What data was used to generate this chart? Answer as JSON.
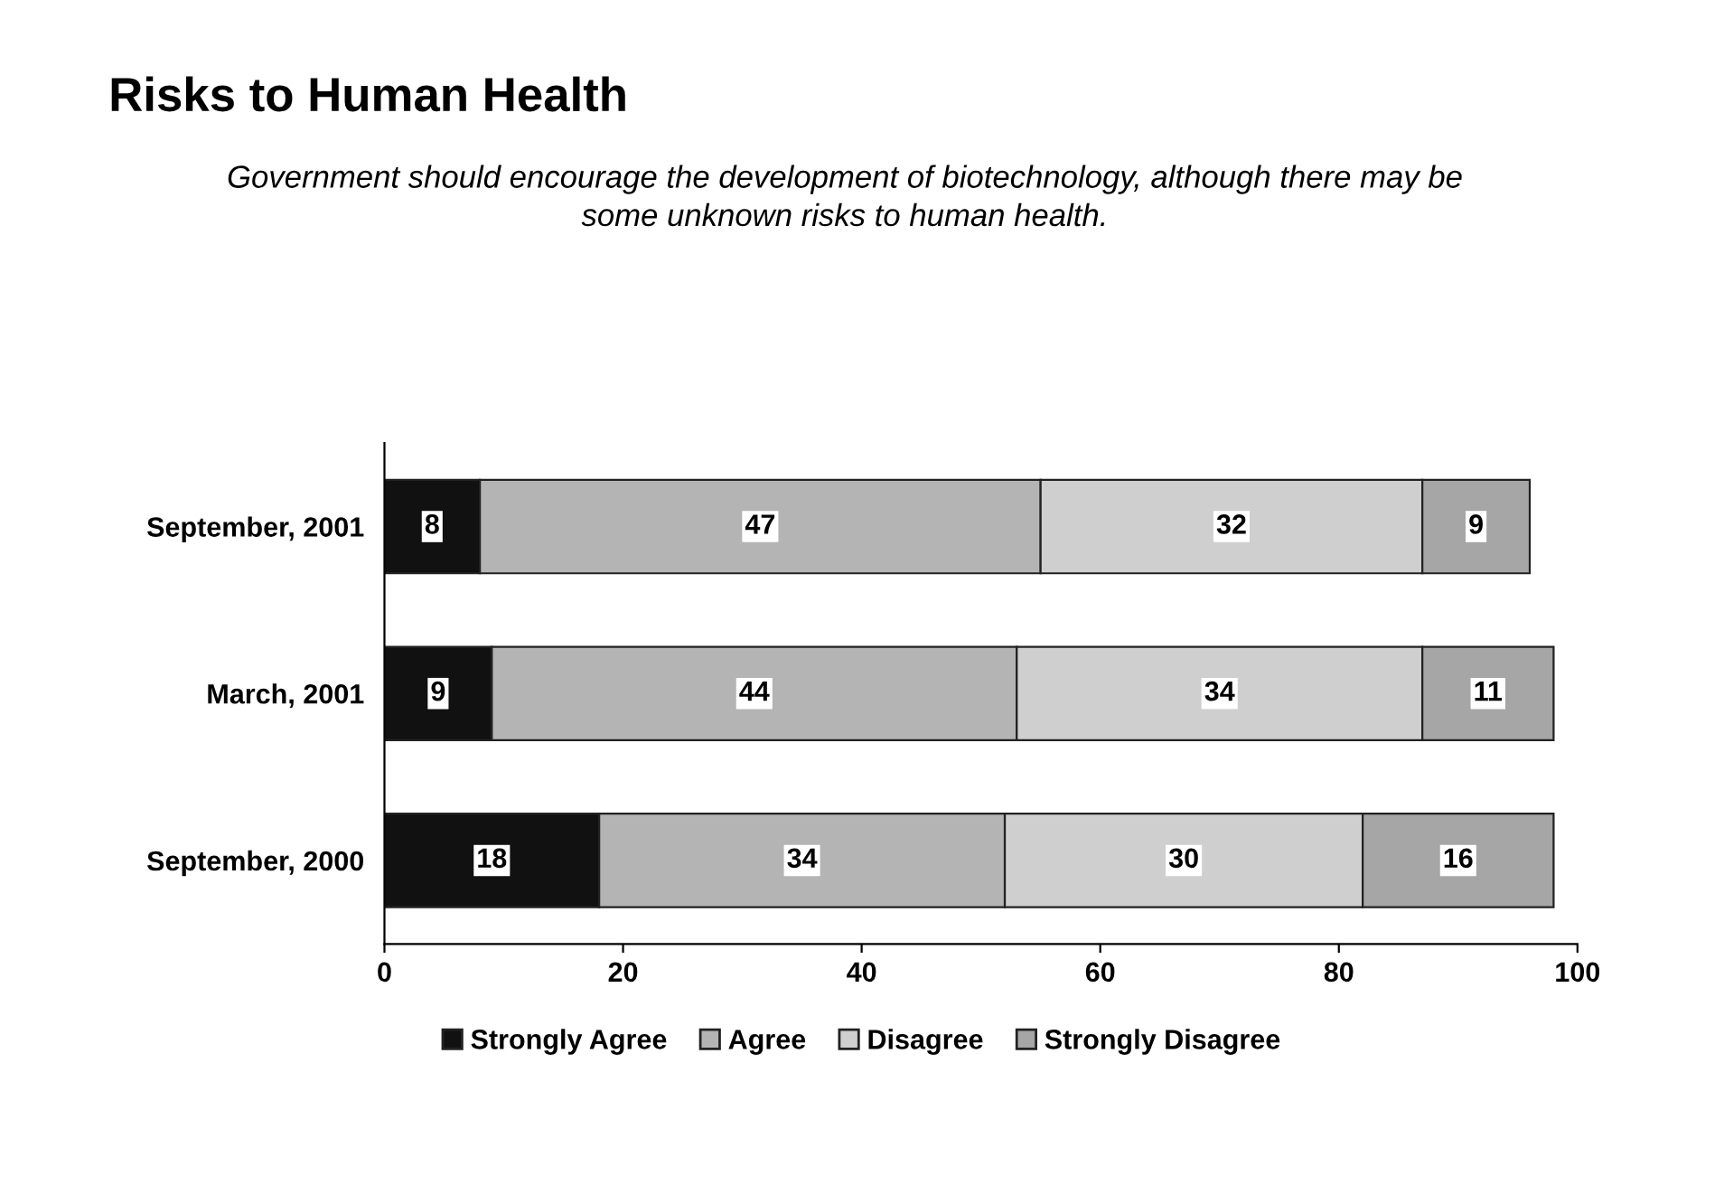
{
  "chart_data": {
    "type": "bar",
    "orientation": "horizontal",
    "stacked": true,
    "title": "Risks to Human Health",
    "subtitle": "Government should encourage the development of biotechnology, although there may be\nsome unknown risks to human health.",
    "categories": [
      "September, 2001",
      "March, 2001",
      "September, 2000"
    ],
    "series": [
      {
        "name": "Strongly Agree",
        "color": "#111111",
        "values": [
          8,
          9,
          18
        ]
      },
      {
        "name": "Agree",
        "color": "#b4b4b4",
        "values": [
          47,
          44,
          34
        ]
      },
      {
        "name": "Disagree",
        "color": "#cfcfcf",
        "values": [
          32,
          34,
          30
        ]
      },
      {
        "name": "Strongly Disagree",
        "color": "#a6a6a6",
        "values": [
          9,
          11,
          16
        ]
      }
    ],
    "xlim": [
      0,
      100
    ],
    "xticks": [
      0,
      20,
      40,
      60,
      80,
      100
    ],
    "data_labels": true,
    "legend": "bottom",
    "grid": false
  }
}
